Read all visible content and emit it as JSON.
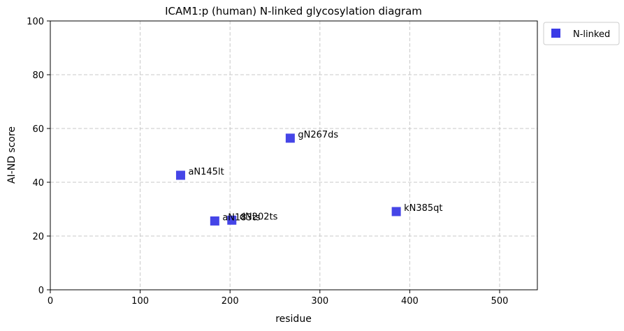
{
  "chart_data": {
    "type": "scatter",
    "title": "ICAM1:p (human) N-linked glycosylation diagram",
    "xlabel": "residue",
    "ylabel": "AI-ND score",
    "xlim": [
      0,
      542
    ],
    "ylim": [
      0,
      100
    ],
    "xticks": [
      0,
      100,
      200,
      300,
      400,
      500
    ],
    "yticks": [
      0,
      20,
      40,
      60,
      80,
      100
    ],
    "grid": true,
    "legend_position": "outside-top-right",
    "series": [
      {
        "name": "N-linked",
        "color": "#3b3be6",
        "marker": "square",
        "points": [
          {
            "x": 145,
            "y": 42.6,
            "label": "aN145lt"
          },
          {
            "x": 183,
            "y": 25.6,
            "label": "aN183ts"
          },
          {
            "x": 202,
            "y": 25.9,
            "label": "dN202ts"
          },
          {
            "x": 267,
            "y": 56.4,
            "label": "gN267ds"
          },
          {
            "x": 385,
            "y": 29.1,
            "label": "kN385qt"
          }
        ]
      }
    ]
  }
}
